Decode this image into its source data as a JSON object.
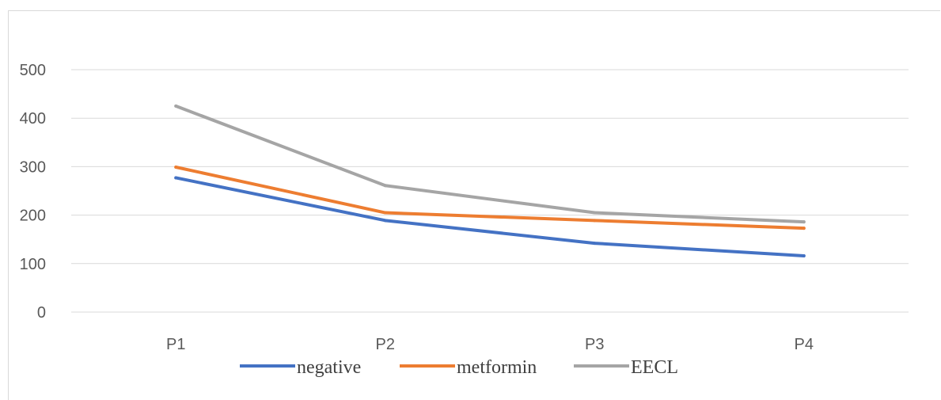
{
  "chart_data": {
    "type": "line",
    "categories": [
      "P1",
      "P2",
      "P3",
      "P4"
    ],
    "series": [
      {
        "name": "negative",
        "color": "#4472c4",
        "values": [
          277,
          189,
          142,
          116
        ]
      },
      {
        "name": "metformin",
        "color": "#ed7d31",
        "values": [
          299,
          205,
          189,
          173
        ]
      },
      {
        "name": "EECL",
        "color": "#a5a5a5",
        "values": [
          425,
          261,
          205,
          186
        ]
      }
    ],
    "ylim": [
      0,
      500
    ],
    "yticks": [
      0,
      100,
      200,
      300,
      400,
      500
    ],
    "grid": true,
    "legend": "bottom"
  }
}
